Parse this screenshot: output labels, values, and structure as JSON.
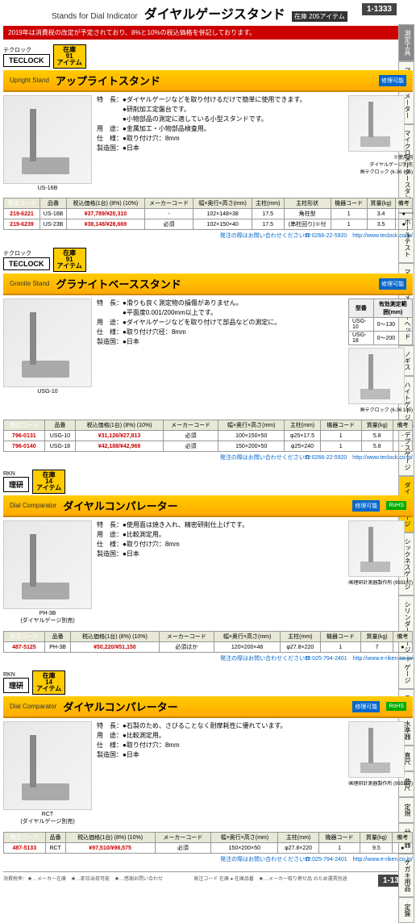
{
  "page_number": "1-1333",
  "header": {
    "en": "Stands for Dial Indicator",
    "jp": "ダイヤルゲージスタンド",
    "badge": "在庫 205アイテム"
  },
  "notice": "2019年は消費税の改定が予定されており、8%と10%の税込価格を併記しております。",
  "side_tabs": [
    "測定工具",
    "マイクロメーター",
    "マイクロメータースタンド",
    "ホールテスト",
    "マイクロメーターヘッド",
    "ノギス",
    "ハイトゲージ",
    "デプスゲージ",
    "ダイヤルゲージ",
    "シックネスゲージ",
    "シリンダーゲージ",
    "ゲージ",
    "スコヤ・水準器",
    "直尺",
    "曲尺",
    "定規",
    "分度器",
    "ケガキ用品",
    "定盤"
  ],
  "sections": [
    {
      "brand_label": "テクロック",
      "brand_box": "TECLOCK",
      "stock": "在庫 91 アイテム",
      "title_en": "Upright Stand",
      "title_jp": "アップライトスタンド",
      "repair": "修理可能",
      "features": [
        "特　長：●ダイヤルゲージなどを取り付けるだけで簡単に使用できます。",
        "　　　　●研削加工定盤台です。",
        "　　　　●小物部品の測定に適している小型スタンドです。",
        "用　途：●金属加工・小物部品検査用。",
        "仕　様：●取り付け穴：8mm",
        "製造国：●日本"
      ],
      "img_caption": "US-16B",
      "right_caption": "※使用例\nダイヤルゲージ別売\n㈱テクロック (6-36 105)",
      "table": {
        "headers": [
          "発注コード",
          "品番",
          "税込価格(1台) (8%) (10%)",
          "メーカーコード",
          "幅×奥行×高さ(mm)",
          "主柱(mm)",
          "主柱形状",
          "機器コード",
          "質量(kg)",
          "備考"
        ],
        "rows": [
          [
            "219-6221",
            "US-16B",
            "¥37,789/¥20,310",
            "-",
            "102×148×38",
            "17.5",
            "角柱型",
            "1",
            "3.4",
            "●"
          ],
          [
            "219-6239",
            "US-23B",
            "¥38,148/¥28,669",
            "必須",
            "102×150×40",
            "17.5",
            "(串柱回り)※付",
            "1",
            "3.5",
            "●"
          ]
        ]
      },
      "contact": "発注の際はお問い合わせください☎:0266-22-5920　http://www.teclock.co.jp/"
    },
    {
      "brand_label": "テクロック",
      "brand_box": "TECLOCK",
      "stock": "在庫 91 アイテム",
      "title_en": "Granite Stand",
      "title_jp": "グラナイトベーススタンド",
      "repair": "修理可能",
      "features": [
        "特　長：●滑りも良く測定物の損傷がありません。",
        "　　　　●平面度0.001/200mm以上です。",
        "用　途：●ダイヤルゲージなどを取り付けて部品などの測定に。",
        "仕　様：●取り付け穴径：8mm",
        "製造国：●日本"
      ],
      "img_caption": "USG-10",
      "spec_small": {
        "headers": [
          "型番",
          "有効測定範囲(mm)"
        ],
        "rows": [
          [
            "USG-10",
            "0～130"
          ],
          [
            "USG-18",
            "0～200"
          ]
        ]
      },
      "right_caption": "㈱テクロック (6-36 105)",
      "table": {
        "headers": [
          "発注コード",
          "品番",
          "税込価格(1台) (8%) (10%)",
          "メーカーコード",
          "幅×奥行×高さ(mm)",
          "主柱(mm)",
          "機器コード",
          "質量(kg)",
          "備考"
        ],
        "rows": [
          [
            "796-0131",
            "USG-10",
            "¥31,126/¥27,813",
            "必須",
            "100×150×50",
            "φ25×17.5",
            "1",
            "5.8",
            "-"
          ],
          [
            "796-0140",
            "USG-18",
            "¥42,188/¥42,969",
            "必須",
            "150×200×50",
            "φ25×240",
            "1",
            "5.8",
            "-"
          ]
        ]
      },
      "contact": "発注の際はお問い合わせください☎:0266-22-5920　http://www.teclock.co.jp/"
    },
    {
      "brand_label": "RKN",
      "brand_box": "理研",
      "stock": "在庫 14 アイテム",
      "title_en": "Dial Comparator",
      "title_jp": "ダイヤルコンパレーター",
      "repair": "修理可能",
      "rohs": "RoHS",
      "features": [
        "特　長：●使用面は焼き入れ、精密研削仕上げです。",
        "用　途：●比較測定用。",
        "仕　様：●取り付け穴：8mm",
        "製造国：●日本"
      ],
      "img_caption": "PH-3B\n(ダイヤルゲージ別売)",
      "right_caption": "㈱理研計測器製作所 (993107)",
      "table": {
        "headers": [
          "発注コード",
          "品番",
          "税込価格(1台) (8%) (10%)",
          "メーカーコード",
          "幅×奥行×高さ(mm)",
          "主柱(mm)",
          "機器コード",
          "質量(kg)",
          "備考"
        ],
        "rows": [
          [
            "487-5125",
            "PH-3B",
            "¥50,220/¥51,150",
            "必須ほか",
            "120×200×48",
            "φ27.8×220",
            "1",
            "7",
            "●"
          ]
        ]
      },
      "contact": "発注の際はお問い合わせください☎:025-794-2401　http://www.e-riken.co.jp/"
    },
    {
      "brand_label": "RKN",
      "brand_box": "理研",
      "stock": "在庫 14 アイテム",
      "title_en": "Dial Comparator",
      "title_jp": "ダイヤルコンパレーター",
      "repair": "修理可能",
      "rohs": "RoHS",
      "features": [
        "特　長：●石製のため、さびることなく耐摩耗性に優れています。",
        "用　途：●比較測定用。",
        "仕　様：●取り付け穴：8mm",
        "製造国：●日本"
      ],
      "img_caption": "RCT\n(ダイヤルゲージ別売)",
      "right_caption": "㈱理研計測器製作所 (993107)",
      "table": {
        "headers": [
          "発注コード",
          "品番",
          "税込価格(1台) (8%) (10%)",
          "メーカーコード",
          "幅×奥行×高さ(mm)",
          "主柱(mm)",
          "機器コード",
          "質量(kg)",
          "備考"
        ],
        "rows": [
          [
            "487-5133",
            "RCT",
            "¥97,510/¥98,575",
            "必須",
            "150×200×50",
            "φ27.8×220",
            "1",
            "9.5",
            "●"
          ]
        ]
      },
      "contact": "発注の際はお問い合わせください☎:025-794-2401　http://www.e-riken.co.jp/"
    }
  ],
  "footer_left": "消費税率：★…メーカー在庫　★…即日出荷可能　★…感謝お問い合わせ",
  "footer_mid": "発注コード 在庫 ● 在庫品番　★…メーカー取り寄せ品 のため運賃別途",
  "colors": {
    "accent": "#fc0",
    "red": "#c00",
    "blue": "#06c",
    "green": "#0a0",
    "gray_dark": "#444"
  }
}
